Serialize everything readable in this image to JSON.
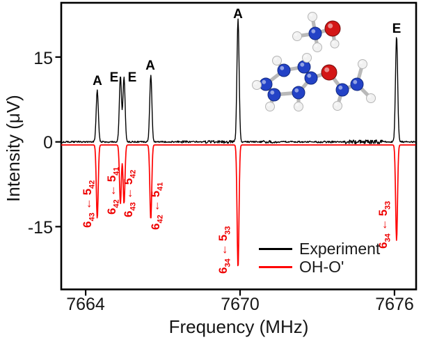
{
  "figure": {
    "molecule_inset": {
      "type": "ball-and-stick molecular model",
      "position": "upper right inside plot, methanol fragment above ring-amide fragment",
      "atom_colors": {
        "ring_and_chain_atoms": "#2342c6",
        "oxygen": "#d31616",
        "hydrogen": "#f1f1f1",
        "bond": "#b9b9b9"
      }
    },
    "legend": {
      "items": [
        {
          "label": "Experiment",
          "color": "#000000"
        },
        {
          "label": "OH-O'",
          "color": "#ff0000"
        }
      ]
    }
  },
  "chart_data": {
    "type": "line",
    "title": "",
    "xlabel": "Frequency (MHz)",
    "ylabel": "Intensity (μV)",
    "xlim": [
      7663.05,
      7676.84
    ],
    "ylim": [
      -26.1,
      24.6
    ],
    "x_ticks": [
      7664,
      7670,
      7676
    ],
    "y_ticks": [
      15,
      0,
      -15
    ],
    "grid": false,
    "legend_position": "lower right inside plot",
    "sim_baseline_offset_uv": -0.55,
    "series": [
      {
        "name": "Experiment",
        "color": "#000000",
        "direction": "upward peaks"
      },
      {
        "name": "OH-O'",
        "color": "#ff0000",
        "direction": "downward (inverted) peaks"
      }
    ],
    "peaks": [
      {
        "freq_mhz": 7664.45,
        "symmetry": "A",
        "experiment_uv": 9.1,
        "simulation_uv": -13.0,
        "transition": {
          "upper": "6",
          "upper_sub": "43",
          "arrow": "←",
          "lower": "5",
          "lower_sub": "42"
        }
      },
      {
        "freq_mhz": 7665.35,
        "symmetry": "E",
        "experiment_uv": 11.6,
        "simulation_uv": -10.4,
        "transition": {
          "upper": "6",
          "upper_sub": "42",
          "arrow": "←",
          "lower": "5",
          "lower_sub": "41"
        }
      },
      {
        "freq_mhz": 7665.49,
        "symmetry": "E",
        "experiment_uv": 11.4,
        "simulation_uv": -10.4,
        "transition": {
          "upper": "6",
          "upper_sub": "43",
          "arrow": "←",
          "lower": "5",
          "lower_sub": "42"
        }
      },
      {
        "freq_mhz": 7666.53,
        "symmetry": "A",
        "experiment_uv": 11.9,
        "simulation_uv": -13.2,
        "transition": {
          "upper": "6",
          "upper_sub": "42",
          "arrow": "←",
          "lower": "5",
          "lower_sub": "41"
        }
      },
      {
        "freq_mhz": 7669.92,
        "symmetry": "A",
        "experiment_uv": 21.7,
        "simulation_uv": -21.8,
        "transition": {
          "upper": "6",
          "upper_sub": "34",
          "arrow": "←",
          "lower": "5",
          "lower_sub": "33"
        }
      },
      {
        "freq_mhz": 7676.08,
        "symmetry": "E",
        "experiment_uv": 18.8,
        "simulation_uv": -16.9,
        "transition": {
          "upper": "6",
          "upper_sub": "34",
          "arrow": "←",
          "lower": "5",
          "lower_sub": "33"
        }
      }
    ]
  }
}
